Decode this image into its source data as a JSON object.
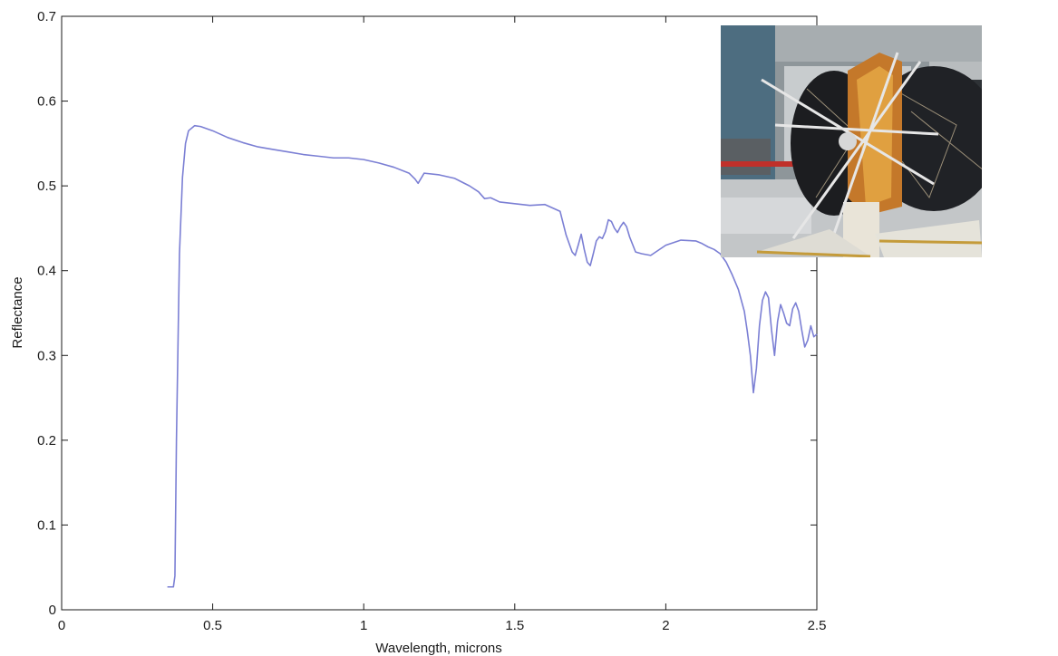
{
  "chart_data": {
    "type": "line",
    "title": "",
    "xlabel": "Wavelength, microns",
    "ylabel": "Reflectance",
    "xlim": [
      0,
      2.5
    ],
    "ylim": [
      0,
      0.7
    ],
    "xticks": [
      0,
      0.5,
      1,
      1.5,
      2,
      2.5
    ],
    "xtick_labels": [
      "0",
      "0.5",
      "1",
      "1.5",
      "2",
      "2.5"
    ],
    "yticks": [
      0,
      0.1,
      0.2,
      0.3,
      0.4,
      0.5,
      0.6,
      0.7
    ],
    "ytick_labels": [
      "0",
      "0.1",
      "0.2",
      "0.3",
      "0.4",
      "0.5",
      "0.6",
      "0.7"
    ],
    "grid": false,
    "line_color": "#7b7fd4",
    "series": [
      {
        "x": [
          0.35,
          0.37,
          0.375,
          0.38,
          0.39,
          0.4,
          0.41,
          0.42,
          0.44,
          0.46,
          0.5,
          0.55,
          0.6,
          0.65,
          0.7,
          0.75,
          0.8,
          0.85,
          0.9,
          0.95,
          1.0,
          1.05,
          1.1,
          1.15,
          1.17,
          1.18,
          1.2,
          1.25,
          1.3,
          1.35,
          1.38,
          1.4,
          1.42,
          1.45,
          1.5,
          1.55,
          1.6,
          1.65,
          1.67,
          1.69,
          1.7,
          1.71,
          1.72,
          1.73,
          1.74,
          1.75,
          1.76,
          1.77,
          1.78,
          1.79,
          1.8,
          1.81,
          1.82,
          1.83,
          1.84,
          1.85,
          1.86,
          1.87,
          1.88,
          1.9,
          1.92,
          1.95,
          2.0,
          2.05,
          2.1,
          2.12,
          2.14,
          2.16,
          2.18,
          2.2,
          2.22,
          2.24,
          2.26,
          2.27,
          2.28,
          2.29,
          2.3,
          2.31,
          2.32,
          2.33,
          2.34,
          2.35,
          2.36,
          2.37,
          2.38,
          2.39,
          2.4,
          2.41,
          2.42,
          2.43,
          2.44,
          2.45,
          2.46,
          2.47,
          2.48,
          2.49,
          2.5
        ],
        "y": [
          0.027,
          0.027,
          0.04,
          0.2,
          0.42,
          0.51,
          0.55,
          0.565,
          0.571,
          0.57,
          0.565,
          0.557,
          0.551,
          0.546,
          0.543,
          0.54,
          0.537,
          0.535,
          0.533,
          0.533,
          0.531,
          0.527,
          0.522,
          0.515,
          0.508,
          0.503,
          0.515,
          0.513,
          0.509,
          0.5,
          0.493,
          0.485,
          0.486,
          0.481,
          0.479,
          0.477,
          0.478,
          0.47,
          0.442,
          0.422,
          0.418,
          0.43,
          0.443,
          0.425,
          0.41,
          0.406,
          0.42,
          0.435,
          0.44,
          0.438,
          0.446,
          0.46,
          0.458,
          0.45,
          0.445,
          0.452,
          0.457,
          0.452,
          0.44,
          0.422,
          0.42,
          0.418,
          0.43,
          0.436,
          0.435,
          0.432,
          0.428,
          0.425,
          0.42,
          0.41,
          0.395,
          0.378,
          0.352,
          0.328,
          0.3,
          0.256,
          0.285,
          0.335,
          0.365,
          0.375,
          0.368,
          0.33,
          0.3,
          0.34,
          0.36,
          0.35,
          0.338,
          0.335,
          0.355,
          0.362,
          0.352,
          0.33,
          0.31,
          0.318,
          0.335,
          0.322,
          0.325
        ]
      }
    ]
  },
  "inset_photo": {
    "subject": "spacecraft-in-cleanroom"
  }
}
